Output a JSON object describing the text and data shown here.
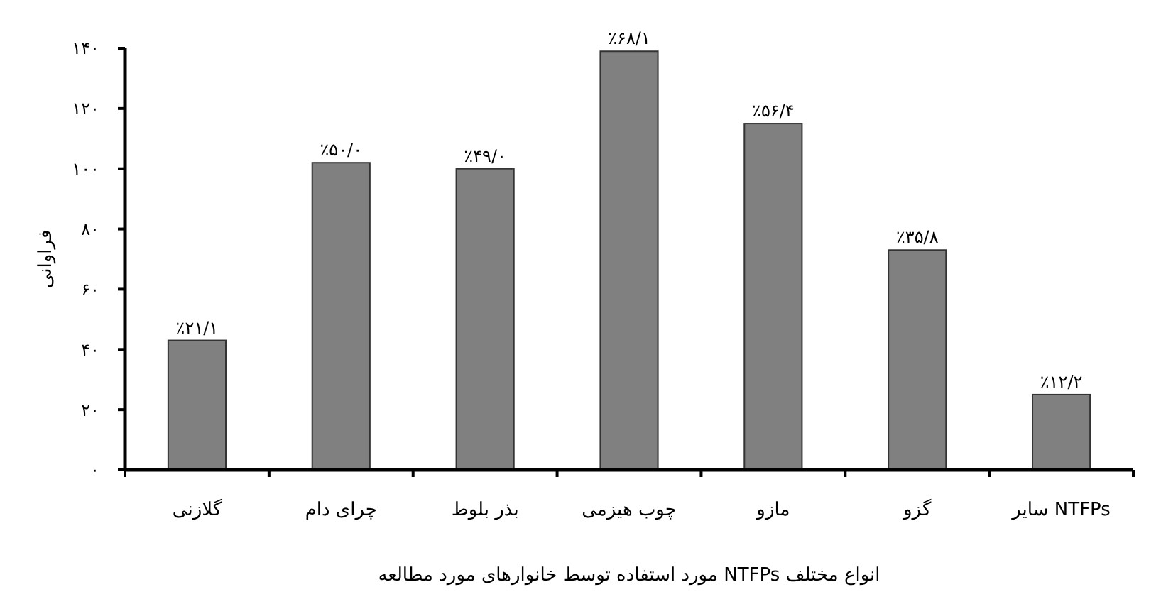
{
  "chart_data": {
    "type": "bar",
    "xlabel": "انواع مختلف NTFPs مورد استفاده توسط خانوارهای مورد مطالعه",
    "ylabel": "فراوانی",
    "categories": [
      "گلازنی",
      "چرای دام",
      "بذر بلوط",
      "چوب هیزمی",
      "مازو",
      "گزو",
      "سایر NTFPs"
    ],
    "values": [
      43,
      102,
      100,
      139,
      115,
      73,
      25
    ],
    "value_labels": [
      "٪۲۱/۱",
      "٪۵۰/۰",
      "٪۴۹/۰",
      "٪۶۸/۱",
      "٪۵۶/۴",
      "٪۳۵/۸",
      "٪۱۲/۲"
    ],
    "color": "#808080",
    "ylim": [
      0,
      140
    ],
    "yticks": [
      {
        "value": 0,
        "label": "۰"
      },
      {
        "value": 20,
        "label": "۲۰"
      },
      {
        "value": 40,
        "label": "۴۰"
      },
      {
        "value": 60,
        "label": "۶۰"
      },
      {
        "value": 80,
        "label": "۸۰"
      },
      {
        "value": 100,
        "label": "۱۰۰"
      },
      {
        "value": 120,
        "label": "۱۲۰"
      },
      {
        "value": 140,
        "label": "۱۴۰"
      }
    ],
    "grid": false
  }
}
